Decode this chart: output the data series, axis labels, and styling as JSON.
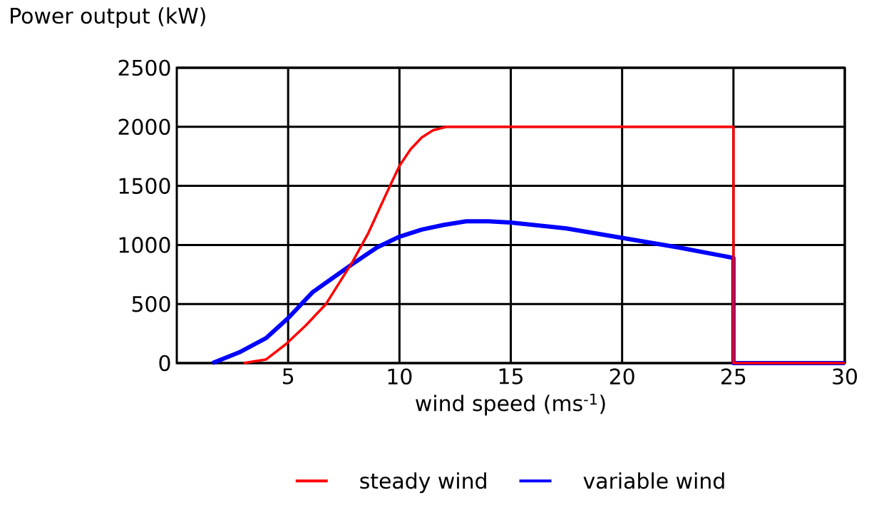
{
  "chart_data": {
    "type": "line",
    "ylabel": "Power output (kW)",
    "xlabel": "wind speed (ms$^{-1}$)",
    "xlim": [
      0,
      30
    ],
    "xticks": [
      5,
      10,
      15,
      20,
      25,
      30
    ],
    "ylim": [
      0,
      2500
    ],
    "yticks": [
      0,
      500,
      1000,
      1500,
      2000,
      2500
    ],
    "grid": true,
    "legend": "bottom",
    "marker": "none",
    "line_style": "solid",
    "series": [
      {
        "name": "steady wind",
        "color": "#ff0000",
        "x": [
          3,
          4,
          4.9,
          5.8,
          6.7,
          7.3,
          7.9,
          8.6,
          9.4,
          10,
          10.5,
          11,
          11.5,
          12.1,
          12.6,
          25,
          25,
          30
        ],
        "values": [
          0,
          30,
          160,
          320,
          500,
          680,
          860,
          1100,
          1430,
          1670,
          1810,
          1910,
          1970,
          2000,
          2000,
          2000,
          0,
          0
        ]
      },
      {
        "name": "variable wind",
        "color": "#0000ff",
        "x": [
          1.6,
          2.8,
          4,
          5,
          6.1,
          7,
          7.9,
          9,
          10,
          11,
          12,
          13,
          14,
          15,
          17.5,
          20,
          22.5,
          25,
          25,
          30
        ],
        "values": [
          0,
          90,
          210,
          380,
          600,
          720,
          840,
          980,
          1070,
          1130,
          1170,
          1200,
          1200,
          1190,
          1140,
          1060,
          980,
          890,
          0,
          0
        ]
      }
    ]
  }
}
